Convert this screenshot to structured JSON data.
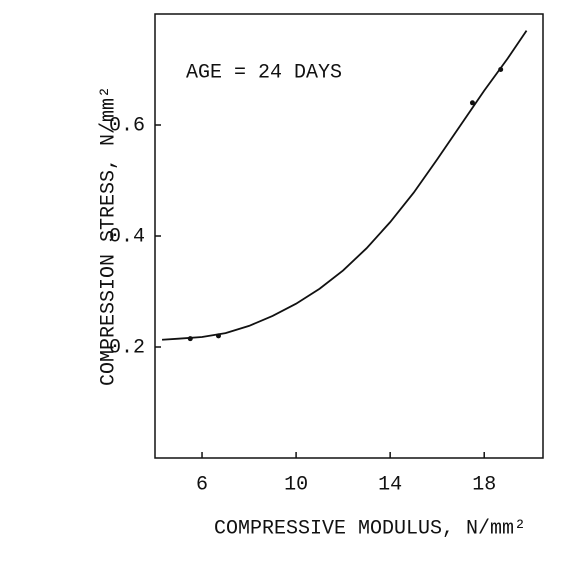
{
  "chart_data": {
    "type": "line",
    "xlabel": "COMPRESSIVE MODULUS, N/mm²",
    "ylabel": "COMPRESSION STRESS, N/mm²",
    "annotation": "AGE = 24 DAYS",
    "x": [
      4.3,
      5,
      6,
      7,
      8,
      9,
      10,
      11,
      12,
      13,
      14,
      15,
      16,
      17,
      18,
      19,
      19.8
    ],
    "values": [
      0.213,
      0.215,
      0.218,
      0.225,
      0.238,
      0.256,
      0.278,
      0.305,
      0.338,
      0.378,
      0.425,
      0.478,
      0.538,
      0.6,
      0.662,
      0.72,
      0.77
    ],
    "color": "#111111",
    "points": {
      "x": [
        5.5,
        6.7,
        17.5,
        18.7
      ],
      "values": [
        0.215,
        0.22,
        0.64,
        0.7
      ]
    },
    "xlim": [
      4,
      20.5
    ],
    "ylim": [
      0,
      0.8
    ],
    "xticks": [
      6,
      10,
      14,
      18
    ],
    "yticks": [
      0.2,
      0.4,
      0.6
    ]
  }
}
